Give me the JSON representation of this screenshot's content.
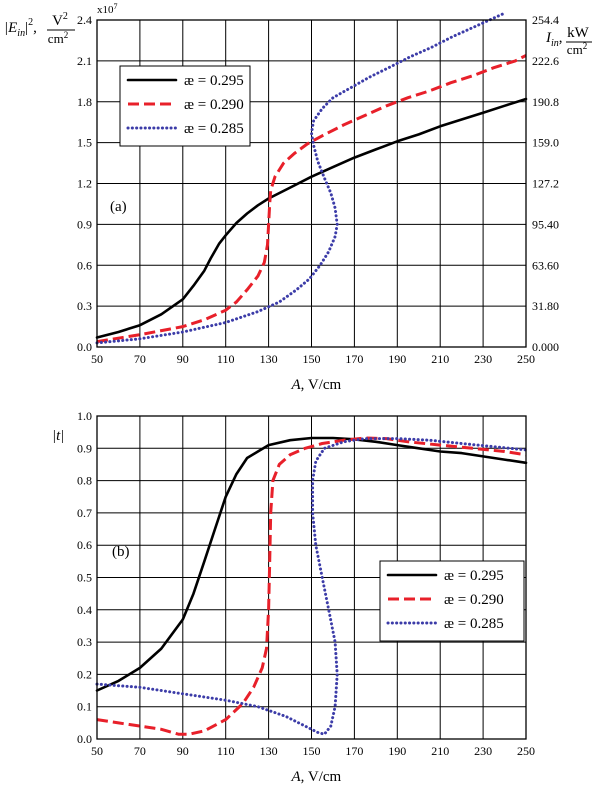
{
  "chart_data": [
    {
      "panel_label": "(a)",
      "type": "line",
      "x_label_var": "A",
      "x_label_unit": ", V/cm",
      "xlim": [
        50,
        250
      ],
      "x_ticks": [
        "50",
        "70",
        "90",
        "110",
        "130",
        "150",
        "170",
        "190",
        "210",
        "230",
        "250"
      ],
      "ylim": [
        0,
        2.4
      ],
      "y_ticks": [
        "0.0",
        "0.3",
        "0.6",
        "0.9",
        "1.2",
        "1.5",
        "1.8",
        "2.1",
        "2.4"
      ],
      "y_multiplier": "x10",
      "y_multiplier_exp": "7",
      "y_label_left": {
        "pre": "|E",
        "sub": "in",
        "post": "|",
        "sup": "2",
        "comma": ",",
        "num": "V",
        "num_sup": "2",
        "den": "cm",
        "den_sup": "2"
      },
      "y2_ticks": [
        "0.000",
        "31.80",
        "63.60",
        "95.40",
        "127.2",
        "159.0",
        "190.8",
        "222.6",
        "254.4"
      ],
      "y_label_right": {
        "pre": "I",
        "sub": "in",
        "comma": ",",
        "num": "kW",
        "den": "cm",
        "den_sup": "2"
      },
      "grid": true,
      "legend_position": "upper-left",
      "series": [
        {
          "name": "æ = 0.295",
          "color": "#000000",
          "style": "solid",
          "points": [
            [
              50,
              0.07
            ],
            [
              60,
              0.11
            ],
            [
              70,
              0.16
            ],
            [
              80,
              0.24
            ],
            [
              90,
              0.35
            ],
            [
              95,
              0.45
            ],
            [
              100,
              0.56
            ],
            [
              103,
              0.65
            ],
            [
              107,
              0.76
            ],
            [
              110,
              0.82
            ],
            [
              115,
              0.91
            ],
            [
              120,
              0.98
            ],
            [
              125,
              1.04
            ],
            [
              130,
              1.09
            ],
            [
              140,
              1.17
            ],
            [
              150,
              1.25
            ],
            [
              160,
              1.32
            ],
            [
              170,
              1.39
            ],
            [
              180,
              1.45
            ],
            [
              190,
              1.51
            ],
            [
              200,
              1.56
            ],
            [
              210,
              1.62
            ],
            [
              220,
              1.67
            ],
            [
              230,
              1.72
            ],
            [
              240,
              1.77
            ],
            [
              250,
              1.82
            ]
          ]
        },
        {
          "name": "æ = 0.290",
          "color": "#e8202a",
          "style": "dashed",
          "points": [
            [
              50,
              0.04
            ],
            [
              70,
              0.09
            ],
            [
              90,
              0.15
            ],
            [
              100,
              0.2
            ],
            [
              110,
              0.27
            ],
            [
              115,
              0.33
            ],
            [
              120,
              0.42
            ],
            [
              125,
              0.52
            ],
            [
              128,
              0.62
            ],
            [
              129.5,
              0.75
            ],
            [
              130,
              0.9
            ],
            [
              130.5,
              1.05
            ],
            [
              131,
              1.15
            ],
            [
              133,
              1.25
            ],
            [
              137,
              1.35
            ],
            [
              142,
              1.42
            ],
            [
              148,
              1.49
            ],
            [
              155,
              1.55
            ],
            [
              165,
              1.63
            ],
            [
              175,
              1.7
            ],
            [
              185,
              1.77
            ],
            [
              195,
              1.83
            ],
            [
              205,
              1.88
            ],
            [
              215,
              1.94
            ],
            [
              225,
              1.99
            ],
            [
              235,
              2.05
            ],
            [
              245,
              2.1
            ],
            [
              250,
              2.14
            ]
          ]
        },
        {
          "name": "æ = 0.285",
          "color": "#3c3ca8",
          "style": "dotted",
          "points": [
            [
              50,
              0.03
            ],
            [
              70,
              0.06
            ],
            [
              90,
              0.11
            ],
            [
              110,
              0.18
            ],
            [
              125,
              0.26
            ],
            [
              135,
              0.33
            ],
            [
              143,
              0.42
            ],
            [
              149,
              0.5
            ],
            [
              154,
              0.6
            ],
            [
              158,
              0.7
            ],
            [
              161,
              0.81
            ],
            [
              162,
              0.9
            ],
            [
              161,
              1.02
            ],
            [
              159,
              1.13
            ],
            [
              156,
              1.24
            ],
            [
              153,
              1.36
            ],
            [
              151,
              1.48
            ],
            [
              150,
              1.57
            ],
            [
              151,
              1.66
            ],
            [
              155,
              1.75
            ],
            [
              160,
              1.83
            ],
            [
              168,
              1.9
            ],
            [
              177,
              1.98
            ],
            [
              186,
              2.05
            ],
            [
              196,
              2.13
            ],
            [
              206,
              2.2
            ],
            [
              216,
              2.28
            ],
            [
              226,
              2.35
            ],
            [
              233,
              2.4
            ],
            [
              240,
              2.45
            ]
          ]
        }
      ]
    },
    {
      "panel_label": "(b)",
      "type": "line",
      "x_label_var": "A",
      "x_label_unit": ", V/cm",
      "xlim": [
        50,
        250
      ],
      "x_ticks": [
        "50",
        "70",
        "90",
        "110",
        "130",
        "150",
        "170",
        "190",
        "210",
        "230",
        "250"
      ],
      "ylim": [
        0,
        1.0
      ],
      "y_ticks": [
        "0.0",
        "0.1",
        "0.2",
        "0.3",
        "0.4",
        "0.5",
        "0.6",
        "0.7",
        "0.8",
        "0.9",
        "1.0"
      ],
      "y_label": "|t|",
      "grid": true,
      "legend_position": "center-right",
      "series": [
        {
          "name": "æ = 0.295",
          "color": "#000000",
          "style": "solid",
          "points": [
            [
              50,
              0.15
            ],
            [
              60,
              0.18
            ],
            [
              70,
              0.22
            ],
            [
              80,
              0.28
            ],
            [
              90,
              0.37
            ],
            [
              95,
              0.45
            ],
            [
              100,
              0.55
            ],
            [
              105,
              0.65
            ],
            [
              110,
              0.75
            ],
            [
              115,
              0.82
            ],
            [
              120,
              0.87
            ],
            [
              125,
              0.89
            ],
            [
              130,
              0.91
            ],
            [
              140,
              0.925
            ],
            [
              150,
              0.932
            ],
            [
              160,
              0.932
            ],
            [
              170,
              0.928
            ],
            [
              180,
              0.92
            ],
            [
              190,
              0.91
            ],
            [
              200,
              0.9
            ],
            [
              210,
              0.89
            ],
            [
              220,
              0.885
            ],
            [
              230,
              0.875
            ],
            [
              240,
              0.865
            ],
            [
              250,
              0.855
            ]
          ]
        },
        {
          "name": "æ = 0.290",
          "color": "#e8202a",
          "style": "dashed",
          "points": [
            [
              50,
              0.06
            ],
            [
              60,
              0.05
            ],
            [
              70,
              0.04
            ],
            [
              80,
              0.03
            ],
            [
              88,
              0.015
            ],
            [
              93,
              0.015
            ],
            [
              100,
              0.025
            ],
            [
              110,
              0.06
            ],
            [
              118,
              0.11
            ],
            [
              123,
              0.16
            ],
            [
              127,
              0.22
            ],
            [
              129,
              0.28
            ],
            [
              130,
              0.4
            ],
            [
              130.5,
              0.55
            ],
            [
              131,
              0.7
            ],
            [
              132,
              0.8
            ],
            [
              135,
              0.85
            ],
            [
              140,
              0.88
            ],
            [
              147,
              0.9
            ],
            [
              155,
              0.915
            ],
            [
              165,
              0.925
            ],
            [
              175,
              0.932
            ],
            [
              185,
              0.93
            ],
            [
              195,
              0.92
            ],
            [
              210,
              0.91
            ],
            [
              225,
              0.9
            ],
            [
              240,
              0.89
            ],
            [
              250,
              0.88
            ]
          ]
        },
        {
          "name": "æ = 0.285",
          "color": "#3c3ca8",
          "style": "dotted",
          "points": [
            [
              50,
              0.17
            ],
            [
              70,
              0.16
            ],
            [
              90,
              0.14
            ],
            [
              110,
              0.12
            ],
            [
              125,
              0.1
            ],
            [
              138,
              0.07
            ],
            [
              147,
              0.04
            ],
            [
              153,
              0.02
            ],
            [
              156,
              0.015
            ],
            [
              159,
              0.04
            ],
            [
              161,
              0.1
            ],
            [
              162,
              0.2
            ],
            [
              161,
              0.3
            ],
            [
              158,
              0.4
            ],
            [
              155,
              0.5
            ],
            [
              152,
              0.6
            ],
            [
              150.5,
              0.7
            ],
            [
              150.5,
              0.8
            ],
            [
              152,
              0.86
            ],
            [
              156,
              0.9
            ],
            [
              165,
              0.92
            ],
            [
              175,
              0.93
            ],
            [
              190,
              0.93
            ],
            [
              205,
              0.925
            ],
            [
              220,
              0.915
            ],
            [
              235,
              0.905
            ],
            [
              250,
              0.895
            ]
          ]
        }
      ]
    }
  ]
}
